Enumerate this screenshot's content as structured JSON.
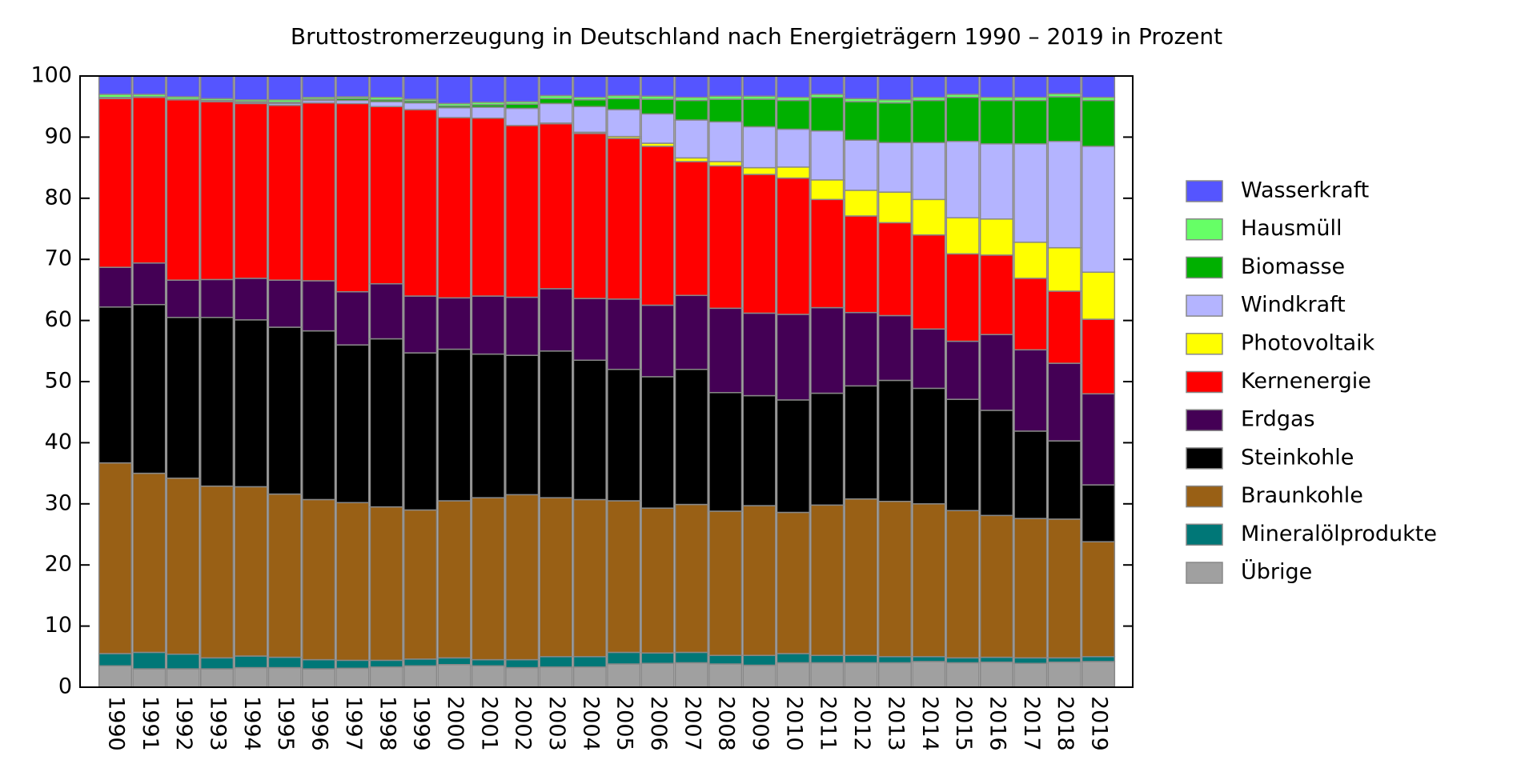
{
  "chart_data": {
    "type": "stacked_bar",
    "title": "Bruttostromerzeugung in Deutschland nach Energieträgern 1990 – 2019 in Prozent",
    "categories": [
      "1990",
      "1991",
      "1992",
      "1993",
      "1994",
      "1995",
      "1996",
      "1997",
      "1998",
      "1999",
      "2000",
      "2001",
      "2002",
      "2003",
      "2004",
      "2005",
      "2006",
      "2007",
      "2008",
      "2009",
      "2010",
      "2011",
      "2012",
      "2013",
      "2014",
      "2015",
      "2016",
      "2017",
      "2018",
      "2019"
    ],
    "ylim": [
      0,
      100
    ],
    "yticks": [
      0,
      10,
      20,
      30,
      40,
      50,
      60,
      70,
      80,
      90,
      100
    ],
    "series": [
      {
        "name": "Übrige",
        "color": "#a0a0a0",
        "values": [
          3.5,
          3.0,
          3.0,
          3.0,
          3.2,
          3.2,
          3.0,
          3.1,
          3.3,
          3.5,
          3.7,
          3.5,
          3.2,
          3.3,
          3.3,
          3.8,
          3.9,
          4.0,
          3.8,
          3.6,
          4.0,
          4.0,
          4.0,
          4.0,
          4.2,
          4.0,
          4.1,
          3.9,
          4.1,
          4.2
        ]
      },
      {
        "name": "Mineralölprodukte",
        "color": "#007777",
        "values": [
          2.0,
          2.7,
          2.4,
          1.8,
          1.9,
          1.7,
          1.5,
          1.3,
          1.1,
          1.1,
          1.1,
          1.0,
          1.3,
          1.7,
          1.7,
          1.9,
          1.7,
          1.7,
          1.4,
          1.6,
          1.5,
          1.2,
          1.2,
          1.0,
          0.8,
          0.8,
          0.8,
          0.9,
          0.7,
          0.8
        ]
      },
      {
        "name": "Braunkohle",
        "color": "#996015",
        "values": [
          31.2,
          29.3,
          28.8,
          28.1,
          27.7,
          26.7,
          26.2,
          25.8,
          25.1,
          24.4,
          25.7,
          26.5,
          27.0,
          26.0,
          25.7,
          24.8,
          23.7,
          24.2,
          23.6,
          24.5,
          23.1,
          24.6,
          25.6,
          25.4,
          25.0,
          24.1,
          23.2,
          22.8,
          22.7,
          18.8
        ]
      },
      {
        "name": "Steinkohle",
        "color": "#000000",
        "values": [
          25.5,
          27.6,
          26.3,
          27.6,
          27.3,
          27.3,
          27.6,
          25.8,
          27.5,
          25.7,
          24.8,
          23.5,
          22.8,
          24.0,
          22.8,
          21.5,
          21.5,
          22.1,
          19.4,
          18.0,
          18.4,
          18.3,
          18.5,
          19.8,
          18.9,
          18.2,
          17.2,
          14.3,
          12.8,
          9.3
        ]
      },
      {
        "name": "Erdgas",
        "color": "#440055",
        "values": [
          6.5,
          6.8,
          6.1,
          6.2,
          6.8,
          7.7,
          8.2,
          8.7,
          9.0,
          9.3,
          8.4,
          9.5,
          9.5,
          10.2,
          10.1,
          11.5,
          11.7,
          12.1,
          13.8,
          13.5,
          14.0,
          14.0,
          12.0,
          10.6,
          9.7,
          9.5,
          12.4,
          13.3,
          12.7,
          14.9
        ]
      },
      {
        "name": "Kernenergie",
        "color": "#ff0000",
        "values": [
          27.6,
          27.1,
          29.5,
          29.1,
          28.6,
          28.6,
          29.1,
          30.8,
          29.0,
          30.5,
          29.5,
          29.1,
          28.1,
          27.0,
          27.0,
          26.3,
          26.0,
          21.9,
          23.3,
          22.7,
          22.3,
          17.7,
          15.8,
          15.2,
          15.4,
          14.3,
          13.0,
          11.7,
          11.8,
          12.2
        ]
      },
      {
        "name": "Photovoltaik",
        "color": "#ffff00",
        "values": [
          0,
          0,
          0,
          0,
          0,
          0,
          0,
          0,
          0,
          0,
          0,
          0,
          0,
          0.1,
          0.2,
          0.3,
          0.5,
          0.6,
          0.7,
          1.1,
          1.8,
          3.2,
          4.2,
          5.0,
          5.8,
          5.9,
          5.9,
          5.9,
          7.1,
          7.7
        ]
      },
      {
        "name": "Windkraft",
        "color": "#b4b4ff",
        "values": [
          0,
          0,
          0,
          0.1,
          0.2,
          0.3,
          0.4,
          0.5,
          0.8,
          1.1,
          1.6,
          1.8,
          2.8,
          3.2,
          4.2,
          4.4,
          4.8,
          6.2,
          6.5,
          6.7,
          6.2,
          8.0,
          8.2,
          8.1,
          9.3,
          12.5,
          12.3,
          16.1,
          17.4,
          20.6
        ]
      },
      {
        "name": "Biomasse",
        "color": "#00b000",
        "values": [
          0.2,
          0.1,
          0.1,
          0.1,
          0.1,
          0.2,
          0.2,
          0.3,
          0.3,
          0.3,
          0.3,
          0.4,
          0.7,
          0.8,
          1.1,
          1.8,
          2.4,
          3.2,
          3.7,
          4.5,
          4.7,
          5.5,
          6.3,
          6.5,
          6.9,
          7.2,
          7.1,
          7.1,
          7.3,
          7.5
        ]
      },
      {
        "name": "Hausmüll",
        "color": "#66ff66",
        "values": [
          0.5,
          0.4,
          0.4,
          0.3,
          0.3,
          0.4,
          0.3,
          0.3,
          0.4,
          0.3,
          0.4,
          0.4,
          0.4,
          0.5,
          0.4,
          0.5,
          0.5,
          0.5,
          0.5,
          0.5,
          0.5,
          0.5,
          0.5,
          0.5,
          0.5,
          0.5,
          0.5,
          0.5,
          0.5,
          0.5
        ]
      },
      {
        "name": "Wasserkraft",
        "color": "#5555ff",
        "values": [
          3.0,
          3.0,
          3.4,
          3.7,
          3.9,
          3.9,
          3.5,
          3.4,
          3.5,
          3.8,
          4.5,
          4.3,
          4.2,
          3.2,
          3.5,
          3.2,
          3.3,
          3.5,
          3.3,
          3.3,
          3.5,
          3.0,
          3.7,
          3.9,
          3.5,
          3.0,
          3.5,
          3.5,
          2.9,
          3.5
        ]
      }
    ]
  }
}
